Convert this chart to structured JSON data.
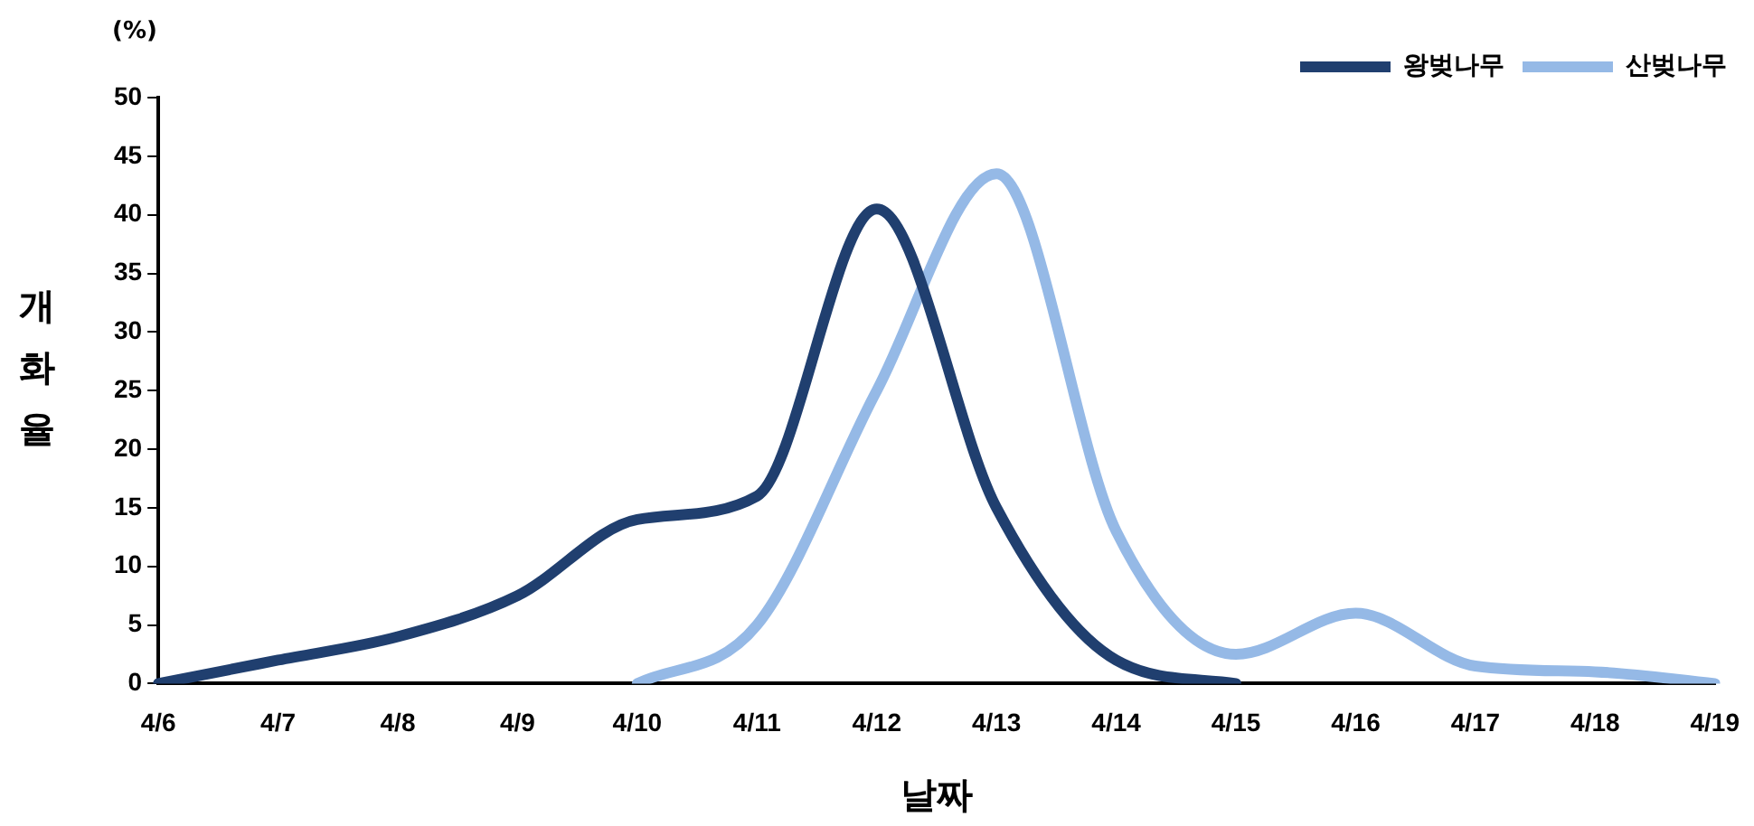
{
  "chart_data": {
    "type": "line",
    "categories": [
      "4/6",
      "4/7",
      "4/8",
      "4/9",
      "4/10",
      "4/11",
      "4/12",
      "4/13",
      "4/14",
      "4/15",
      "4/16",
      "4/17",
      "4/18",
      "4/19"
    ],
    "series": [
      {
        "name": "왕벚나무",
        "color": "#203f6f",
        "values": [
          0,
          2,
          4,
          7.5,
          14,
          16,
          40.5,
          15,
          2,
          0,
          null,
          null,
          null,
          null
        ]
      },
      {
        "name": "산벚나무",
        "color": "#95b9e6",
        "values": [
          null,
          null,
          null,
          null,
          0,
          5,
          25,
          43.5,
          13,
          2.5,
          6,
          1.5,
          1,
          0
        ]
      }
    ],
    "ylim": [
      0,
      50
    ],
    "yticks": [
      0,
      5,
      10,
      15,
      20,
      25,
      30,
      35,
      40,
      45,
      50
    ],
    "xlabel": "날짜",
    "ylabel": "개화율",
    "annotations": [
      "(%)"
    ],
    "grid": false,
    "legend": "top right",
    "marker": "none",
    "line_style": "solid"
  }
}
